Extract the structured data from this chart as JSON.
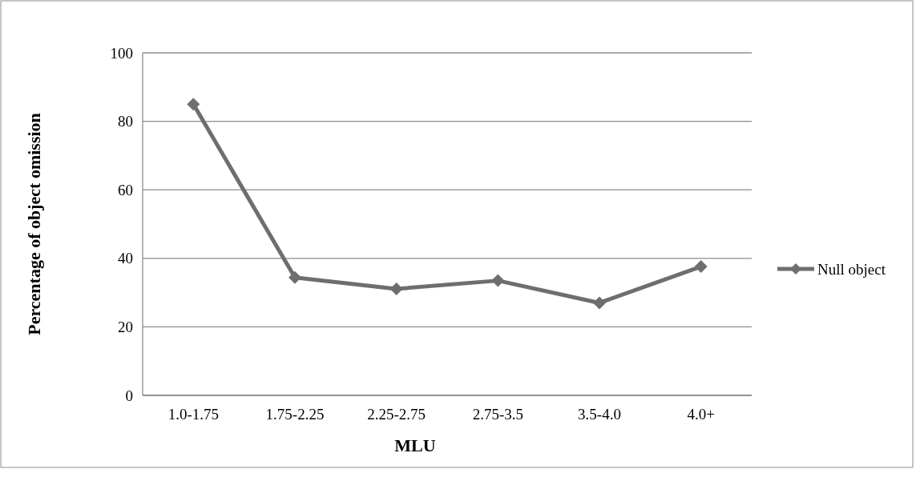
{
  "chart_data": {
    "type": "line",
    "xlabel": "MLU",
    "ylabel": "Percentage of object omission",
    "categories": [
      "1.0-1.75",
      "1.75-2.25",
      "2.25-2.75",
      "2.75-3.5",
      "3.5-4.0",
      "4.0+"
    ],
    "series": [
      {
        "name": "Null object",
        "color": "#6e6e6e",
        "values": [
          85,
          34.4,
          31.1,
          33.5,
          27,
          37.6
        ]
      }
    ],
    "ylim": [
      0,
      100
    ],
    "yticks": [
      0,
      20,
      40,
      60,
      80,
      100
    ],
    "grid": "y",
    "legend": "right",
    "marker": "diamond",
    "line_style": "solid"
  }
}
